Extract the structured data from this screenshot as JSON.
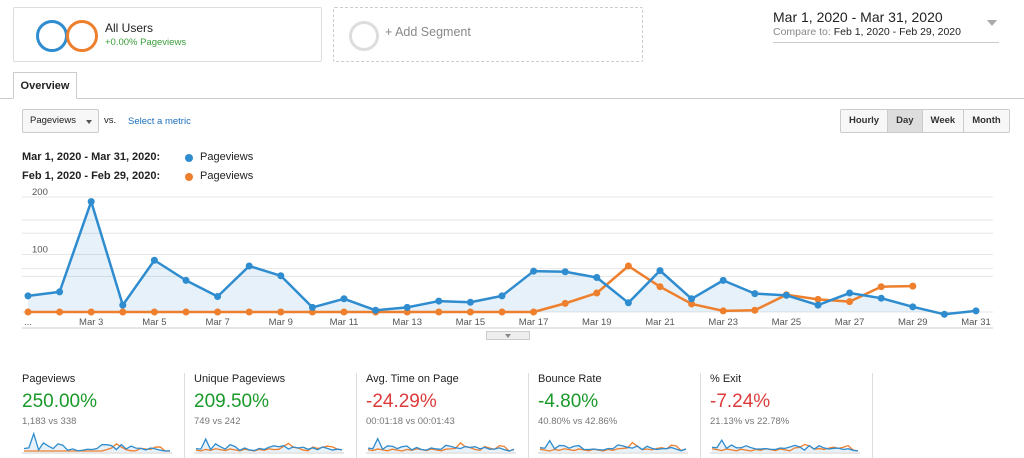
{
  "segment": {
    "title": "All Users",
    "subtitle": "+0.00% Pageviews",
    "colors": {
      "primary": "#2e8ccf",
      "compare": "#ee7f2d"
    }
  },
  "add_segment": {
    "label": "+ Add Segment"
  },
  "date_range": {
    "main": "Mar 1, 2020 - Mar 31, 2020",
    "compare_label": "Compare to:",
    "compare_value": "Feb 1, 2020 - Feb 29, 2020"
  },
  "tabs": [
    {
      "label": "Overview",
      "active": true
    }
  ],
  "controls": {
    "metric": "Pageviews",
    "vs": "vs.",
    "select_metric": "Select a metric",
    "granularity": [
      "Hourly",
      "Day",
      "Week",
      "Month"
    ],
    "active_granularity": "Day"
  },
  "legend": [
    {
      "range": "Mar 1, 2020 - Mar 31, 2020:",
      "name": "Pageviews",
      "color": "#2e8ccf"
    },
    {
      "range": "Feb 1, 2020 - Feb 29, 2020:",
      "name": "Pageviews",
      "color": "#ee7f2d"
    }
  ],
  "chart_data": {
    "type": "line",
    "x_labels": [
      "...",
      "Mar 3",
      "Mar 5",
      "Mar 7",
      "Mar 9",
      "Mar 11",
      "Mar 13",
      "Mar 15",
      "Mar 17",
      "Mar 19",
      "Mar 21",
      "Mar 23",
      "Mar 25",
      "Mar 27",
      "Mar 29",
      "Mar 31"
    ],
    "y_ticks": [
      100,
      200
    ],
    "ylim": [
      0,
      200
    ],
    "grid": true,
    "series": [
      {
        "name": "Pageviews",
        "color": "#2e8ccf",
        "values": [
          28,
          35,
          192,
          12,
          90,
          55,
          27,
          80,
          63,
          8,
          23,
          3,
          8,
          19,
          17,
          28,
          71,
          70,
          60,
          16,
          72,
          23,
          55,
          32,
          29,
          12,
          33,
          24,
          9,
          -4,
          2
        ]
      },
      {
        "name": "Pageviews",
        "color": "#ee7f2d",
        "values": [
          0,
          0,
          0,
          0,
          0,
          0,
          0,
          0,
          0,
          0,
          0,
          0,
          0,
          0,
          0,
          0,
          0,
          15,
          33,
          80,
          44,
          14,
          2,
          3,
          30,
          22,
          18,
          44,
          45
        ]
      }
    ]
  },
  "kpis": [
    {
      "label": "Pageviews",
      "value": "250.00%",
      "compare": "1,183 vs 338",
      "trend": "up",
      "color": "#1a9a2a"
    },
    {
      "label": "Unique Pageviews",
      "value": "209.50%",
      "compare": "749 vs 242",
      "trend": "up",
      "color": "#1a9a2a"
    },
    {
      "label": "Avg. Time on Page",
      "value": "-24.29%",
      "compare": "00:01:18 vs 00:01:43",
      "trend": "down",
      "color": "#dd3b3b"
    },
    {
      "label": "Bounce Rate",
      "value": "-4.80%",
      "compare": "40.80% vs 42.86%",
      "trend": "down",
      "color": "#1a9a2a"
    },
    {
      "label": "% Exit",
      "value": "-7.24%",
      "compare": "21.13% vs 22.78%",
      "trend": "down",
      "color": "#dd3b3b"
    }
  ]
}
